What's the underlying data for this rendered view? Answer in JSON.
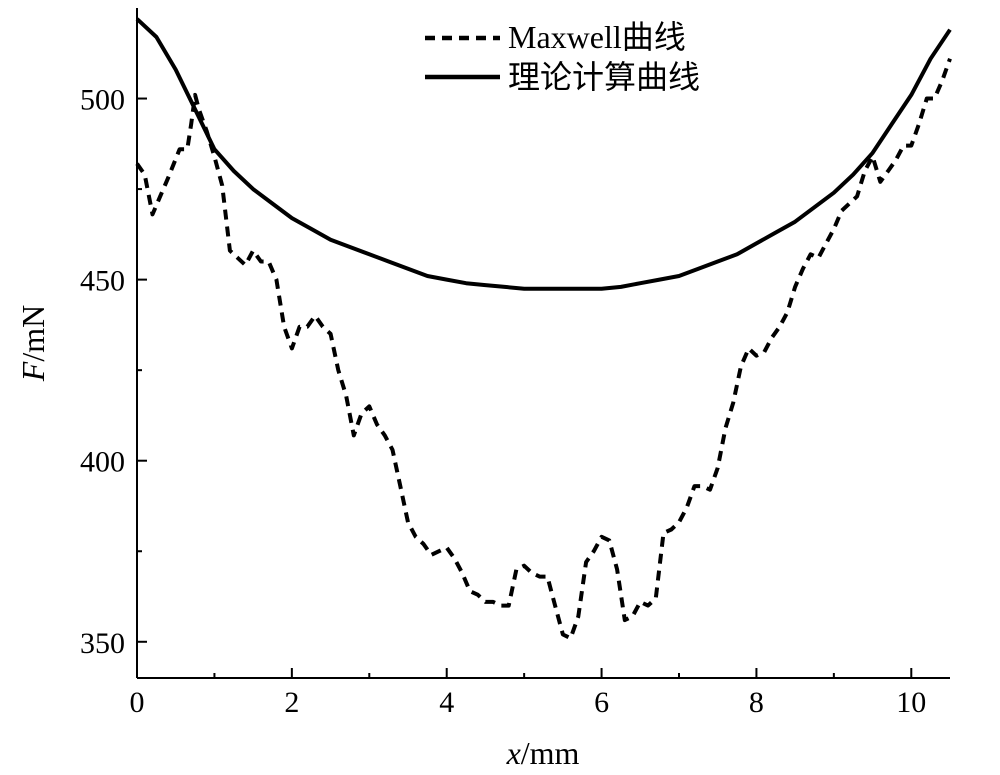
{
  "chart_data": {
    "type": "line",
    "xlabel_var": "x",
    "xlabel_unit": "/mm",
    "ylabel_var": "F",
    "ylabel_unit": "/mN",
    "xlim": [
      0,
      10.5
    ],
    "ylim": [
      340,
      525
    ],
    "x_ticks": [
      0,
      2,
      4,
      6,
      8,
      10
    ],
    "x_tick_labels": [
      "0",
      "2",
      "4",
      "6",
      "8",
      "10"
    ],
    "y_ticks": [
      350,
      400,
      450,
      500
    ],
    "y_tick_labels": [
      "350",
      "400",
      "450",
      "500"
    ],
    "grid": false,
    "legend_placement": "top-center",
    "series": [
      {
        "name": "Maxwell曲线",
        "style": "dashed",
        "color": "#000000",
        "x": [
          0.0,
          0.1,
          0.2,
          0.3,
          0.4,
          0.55,
          0.65,
          0.7,
          0.75,
          0.8,
          0.9,
          1.0,
          1.1,
          1.2,
          1.3,
          1.4,
          1.5,
          1.6,
          1.7,
          1.8,
          1.9,
          2.0,
          2.1,
          2.2,
          2.3,
          2.4,
          2.5,
          2.6,
          2.7,
          2.8,
          2.9,
          3.0,
          3.1,
          3.2,
          3.3,
          3.4,
          3.5,
          3.6,
          3.7,
          3.8,
          3.9,
          4.0,
          4.1,
          4.2,
          4.3,
          4.4,
          4.5,
          4.6,
          4.7,
          4.8,
          4.9,
          5.0,
          5.1,
          5.2,
          5.3,
          5.4,
          5.5,
          5.6,
          5.7,
          5.8,
          5.9,
          6.0,
          6.1,
          6.2,
          6.3,
          6.4,
          6.5,
          6.6,
          6.7,
          6.8,
          6.9,
          7.0,
          7.1,
          7.2,
          7.3,
          7.4,
          7.5,
          7.6,
          7.7,
          7.8,
          7.9,
          8.0,
          8.1,
          8.2,
          8.3,
          8.4,
          8.5,
          8.6,
          8.7,
          8.8,
          8.9,
          9.0,
          9.1,
          9.2,
          9.3,
          9.4,
          9.5,
          9.6,
          9.7,
          9.8,
          9.9,
          10.0,
          10.1,
          10.2,
          10.3,
          10.4,
          10.5
        ],
        "y": [
          482,
          479,
          468,
          473,
          478,
          486,
          486,
          493,
          501,
          497,
          491,
          484,
          476,
          458,
          456,
          454,
          458,
          455,
          455,
          450,
          437,
          431,
          437,
          437,
          440,
          437,
          435,
          425,
          418,
          407,
          413,
          415,
          410,
          407,
          403,
          393,
          383,
          379,
          377,
          374,
          375,
          376,
          373,
          369,
          364,
          363,
          361,
          361,
          360,
          360,
          370,
          371,
          369,
          368,
          368,
          360,
          352,
          351,
          357,
          372,
          375,
          379,
          378,
          370,
          356,
          357,
          361,
          360,
          362,
          380,
          381,
          383,
          387,
          393,
          393,
          392,
          398,
          409,
          416,
          426,
          431,
          429,
          430,
          434,
          437,
          441,
          448,
          453,
          457,
          456,
          460,
          464,
          469,
          471,
          473,
          480,
          484,
          477,
          480,
          483,
          487,
          487,
          493,
          500,
          500,
          505,
          511
        ]
      },
      {
        "name": "理论计算曲线",
        "style": "solid",
        "color": "#000000",
        "x": [
          0.0,
          0.25,
          0.5,
          0.75,
          1.0,
          1.25,
          1.5,
          1.75,
          2.0,
          2.25,
          2.5,
          2.75,
          3.0,
          3.25,
          3.5,
          3.75,
          4.0,
          4.25,
          4.5,
          4.75,
          5.0,
          5.25,
          5.5,
          5.75,
          6.0,
          6.25,
          6.5,
          6.75,
          7.0,
          7.25,
          7.5,
          7.75,
          8.0,
          8.25,
          8.5,
          8.75,
          9.0,
          9.25,
          9.5,
          9.75,
          10.0,
          10.25,
          10.5
        ],
        "y": [
          522,
          517,
          508,
          497,
          486,
          480,
          475,
          471,
          467,
          464,
          461,
          459,
          457,
          455,
          453,
          451,
          450,
          449,
          448.5,
          448,
          447.5,
          447.5,
          447.5,
          447.5,
          447.5,
          448,
          449,
          450,
          451,
          453,
          455,
          457,
          460,
          463,
          466,
          470,
          474,
          479,
          485,
          493,
          501,
          511,
          519
        ]
      }
    ]
  }
}
